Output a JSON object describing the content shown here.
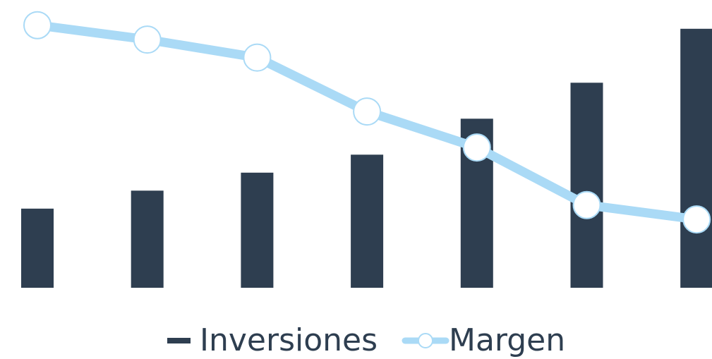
{
  "chart_data": {
    "type": "bar",
    "categories": [
      "",
      "",
      "",
      "",
      "",
      "",
      ""
    ],
    "series": [
      {
        "name": "Inversiones",
        "type": "bar",
        "values": [
          22,
          27,
          32,
          37,
          47,
          57,
          72
        ],
        "color": "#2e3e50"
      },
      {
        "name": "Margen",
        "type": "line",
        "values": [
          73,
          69,
          64,
          49,
          39,
          23,
          19
        ],
        "color": "#aadaf6",
        "marker": "circle-hollow"
      }
    ],
    "title": "",
    "xlabel": "",
    "ylabel": "",
    "ylim": [
      0,
      80
    ],
    "grid": false,
    "legend": "bottom"
  },
  "legend": {
    "items": [
      {
        "label": "Inversiones",
        "icon": "bar-swatch",
        "color": "#2e3e50"
      },
      {
        "label": "Margen",
        "icon": "line-circle-swatch",
        "color": "#aadaf6"
      }
    ]
  }
}
